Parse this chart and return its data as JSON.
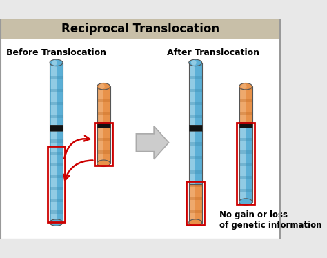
{
  "title": "Reciprocal Translocation",
  "title_bg": "#c8bfa8",
  "bg_color": "#e8e8e8",
  "inner_bg": "#ffffff",
  "label_before": "Before Translocation",
  "label_after": "After Translocation",
  "note_text": "No gain or loss\nof genetic information",
  "blue_color": "#5bafd6",
  "blue_light": "#c8e8f2",
  "blue_dark": "#3a8ab0",
  "orange_color": "#e8924a",
  "orange_light": "#f4c090",
  "orange_dark": "#c06820",
  "centromere_color": "#111111",
  "red_box": "#cc0000",
  "arrow_color": "#cc0000",
  "big_arrow_color": "#cccccc",
  "big_arrow_edge": "#aaaaaa",
  "border_color": "#999999"
}
